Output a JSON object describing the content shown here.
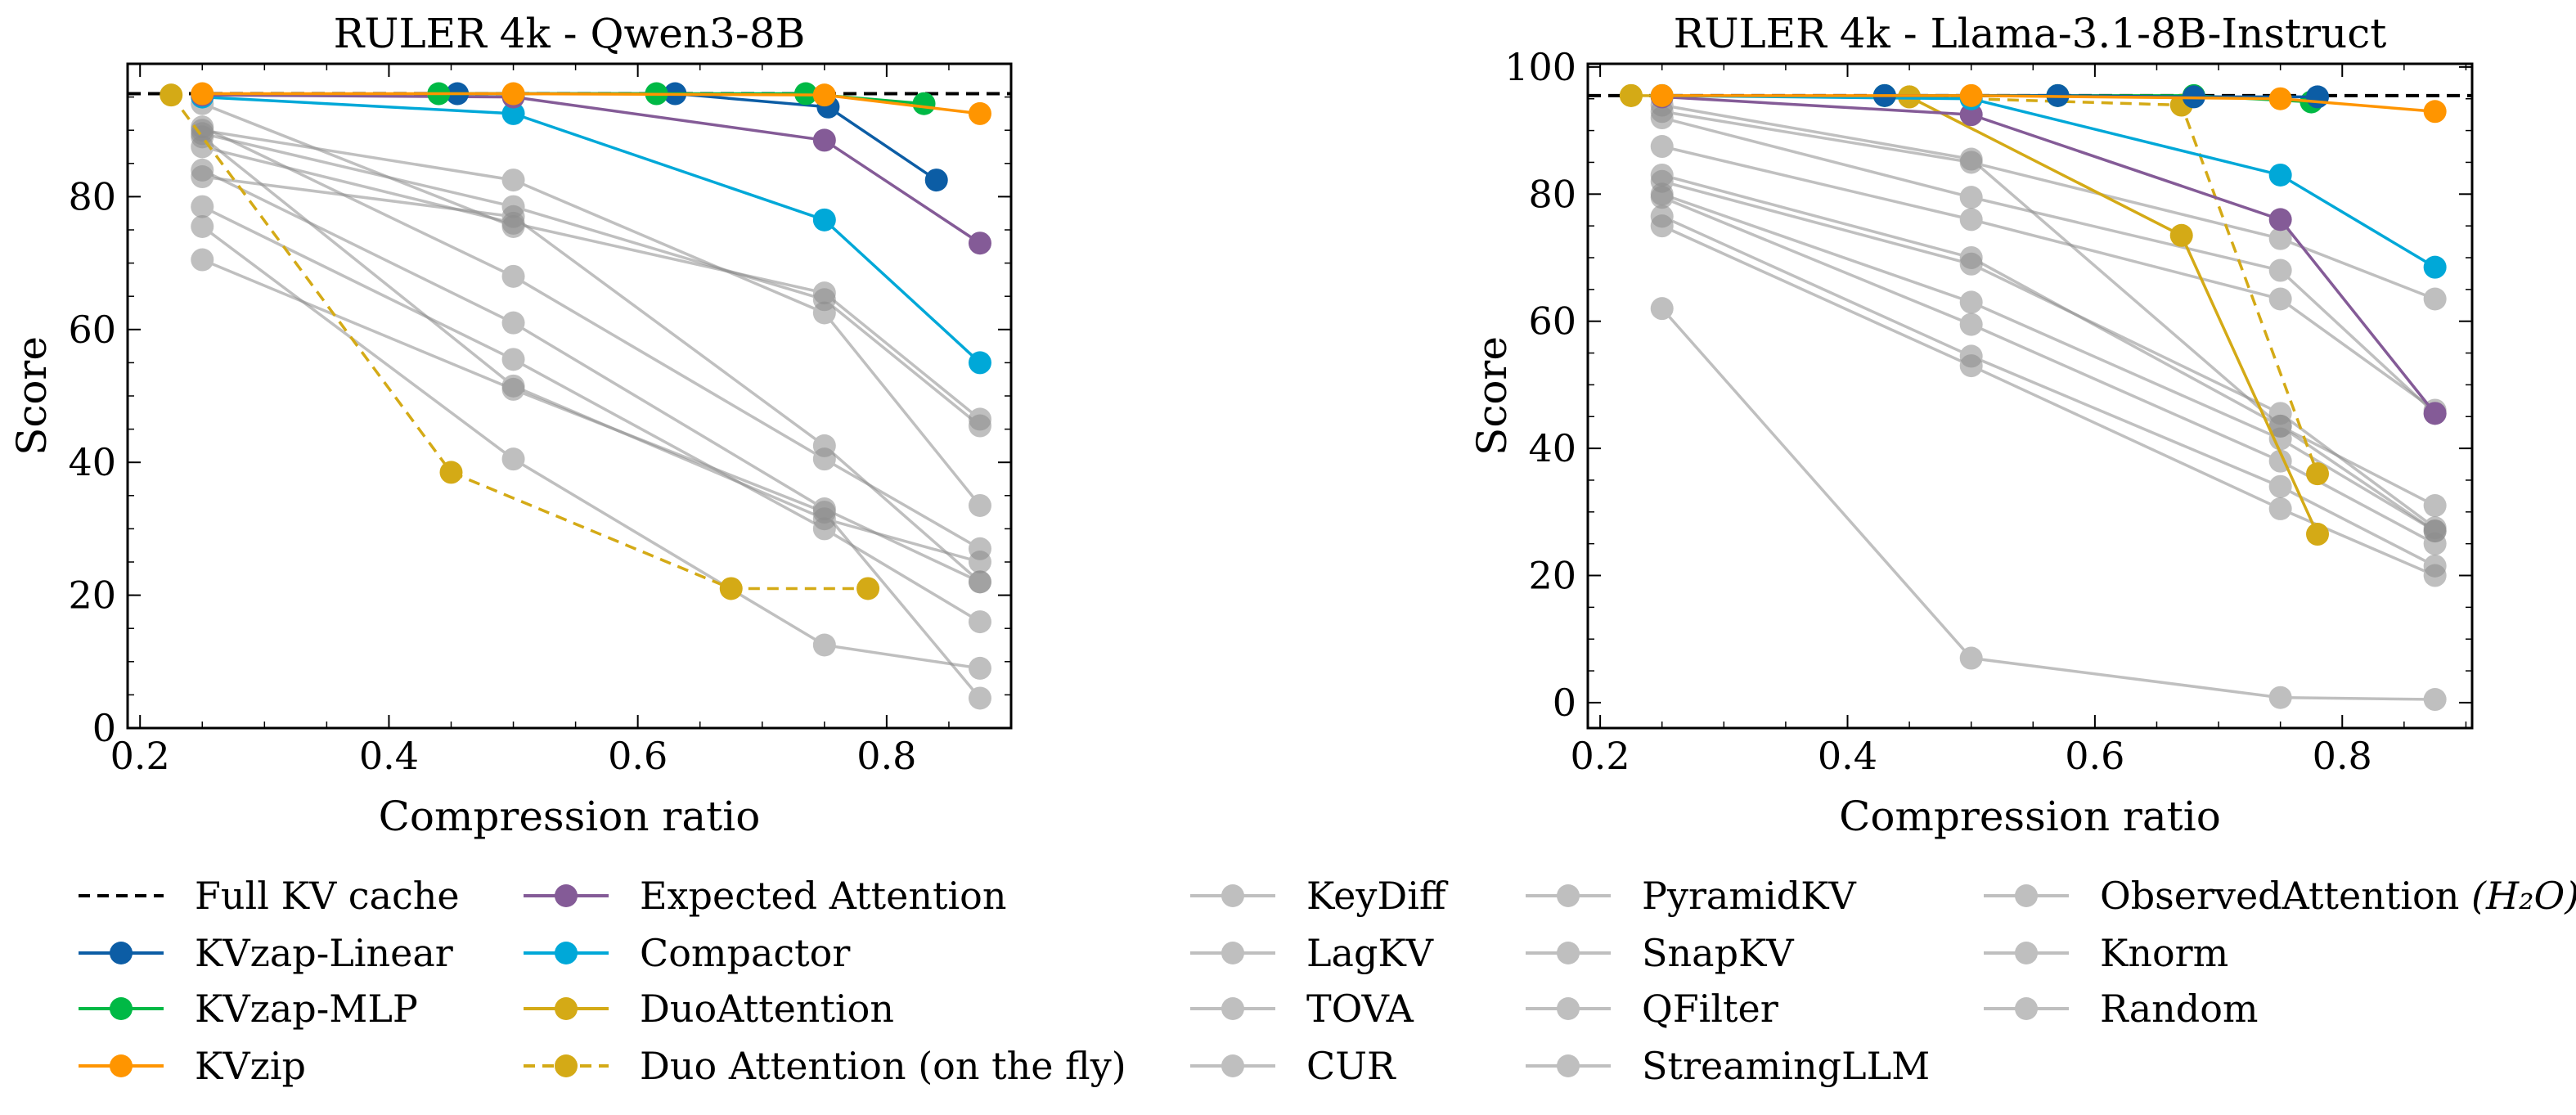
{
  "chart_data": [
    {
      "type": "line",
      "title": "RULER 4k - Qwen3-8B",
      "xlabel": "Compression ratio",
      "ylabel": "Score",
      "xlim": [
        0.19,
        0.9
      ],
      "ylim": [
        0,
        100
      ],
      "xticks": [
        "0.2",
        "0.4",
        "0.6",
        "0.8"
      ],
      "xtick_values": [
        0.2,
        0.4,
        0.6,
        0.8
      ],
      "yticks": [
        "0",
        "20",
        "40",
        "60",
        "80"
      ],
      "ytick_values": [
        0,
        20,
        40,
        60,
        80
      ],
      "full_kv_cache": 95.5,
      "series": [
        {
          "name": "Random",
          "style": "gray",
          "x": [
            0.25,
            0.5,
            0.75,
            0.875
          ],
          "y": [
            70.5,
            51.0,
            32.5,
            4.5
          ]
        },
        {
          "name": "Knorm",
          "style": "gray",
          "x": [
            0.25,
            0.5,
            0.75,
            0.875
          ],
          "y": [
            75.5,
            40.5,
            12.5,
            9.0
          ]
        },
        {
          "name": "StreamingLLM",
          "style": "gray",
          "x": [
            0.25,
            0.5,
            0.75,
            0.875
          ],
          "y": [
            78.5,
            55.5,
            30.0,
            16.0
          ]
        },
        {
          "name": "ObservedAttention",
          "style": "gray",
          "x": [
            0.25,
            0.5,
            0.75,
            0.875
          ],
          "y": [
            83.0,
            77.0,
            42.5,
            22.0
          ]
        },
        {
          "name": "QFilter",
          "style": "gray",
          "x": [
            0.25,
            0.5,
            0.75,
            0.875
          ],
          "y": [
            84.0,
            61.0,
            33.0,
            22.0
          ]
        },
        {
          "name": "SnapKV",
          "style": "gray",
          "x": [
            0.25,
            0.5,
            0.75,
            0.875
          ],
          "y": [
            87.5,
            76.0,
            65.5,
            46.5
          ]
        },
        {
          "name": "PyramidKV",
          "style": "gray",
          "x": [
            0.25,
            0.5,
            0.75,
            0.875
          ],
          "y": [
            89.5,
            78.5,
            64.5,
            45.5
          ]
        },
        {
          "name": "CUR",
          "style": "gray",
          "x": [
            0.25,
            0.5,
            0.75,
            0.875
          ],
          "y": [
            90.5,
            68.0,
            40.5,
            27.0
          ]
        },
        {
          "name": "TOVA",
          "style": "gray",
          "x": [
            0.25,
            0.5,
            0.75,
            0.875
          ],
          "y": [
            90.0,
            82.5,
            62.5,
            33.5
          ]
        },
        {
          "name": "LagKV",
          "style": "gray",
          "x": [
            0.25,
            0.5,
            0.75,
            0.875
          ],
          "y": [
            89.0,
            51.5,
            31.5,
            25.0
          ]
        },
        {
          "name": "KeyDiff",
          "style": "gray",
          "x": [
            0.25,
            0.5
          ],
          "y": [
            94.0,
            75.5
          ]
        },
        {
          "name": "Duo Attention (on the fly)",
          "style": "duo-fly",
          "x": [
            0.225,
            0.45,
            0.675,
            0.785
          ],
          "y": [
            95.3,
            38.5,
            21.0,
            21.0
          ]
        },
        {
          "name": "Compactor",
          "style": "compactor",
          "x": [
            0.25,
            0.5,
            0.75,
            0.875
          ],
          "y": [
            95.0,
            92.5,
            76.5,
            55.0
          ]
        },
        {
          "name": "Expected Attention",
          "style": "expected",
          "x": [
            0.25,
            0.5,
            0.75,
            0.875
          ],
          "y": [
            95.3,
            95.0,
            88.5,
            73.0
          ]
        },
        {
          "name": "KVzap-Linear",
          "style": "kvzap-linear",
          "x": [
            0.455,
            0.63,
            0.753,
            0.84
          ],
          "y": [
            95.5,
            95.5,
            93.5,
            82.5
          ]
        },
        {
          "name": "KVzap-MLP",
          "style": "kvzap-mlp",
          "x": [
            0.44,
            0.615,
            0.735,
            0.83
          ],
          "y": [
            95.5,
            95.5,
            95.5,
            94.0
          ]
        },
        {
          "name": "KVzip",
          "style": "kvzip",
          "x": [
            0.25,
            0.5,
            0.75,
            0.875
          ],
          "y": [
            95.5,
            95.5,
            95.3,
            92.5
          ]
        }
      ]
    },
    {
      "type": "line",
      "title": "RULER 4k - Llama-3.1-8B-Instruct",
      "xlabel": "Compression ratio",
      "ylabel": "Score",
      "xlim": [
        0.19,
        0.905
      ],
      "ylim": [
        -4,
        100.5
      ],
      "xticks": [
        "0.2",
        "0.4",
        "0.6",
        "0.8"
      ],
      "xtick_values": [
        0.2,
        0.4,
        0.6,
        0.8
      ],
      "yticks": [
        "0",
        "20",
        "40",
        "60",
        "80",
        "100"
      ],
      "ytick_values": [
        0,
        20,
        40,
        60,
        80,
        100
      ],
      "full_kv_cache": 95.5,
      "series": [
        {
          "name": "Random",
          "style": "gray",
          "x": [
            0.25,
            0.5,
            0.75,
            0.875
          ],
          "y": [
            62.0,
            7.0,
            0.8,
            0.5
          ]
        },
        {
          "name": "Knorm",
          "style": "gray",
          "x": [
            0.25,
            0.5,
            0.75,
            0.875
          ],
          "y": [
            75.0,
            53.0,
            30.5,
            20.0
          ]
        },
        {
          "name": "StreamingLLM",
          "style": "gray",
          "x": [
            0.25,
            0.5,
            0.75,
            0.875
          ],
          "y": [
            76.5,
            54.5,
            34.0,
            21.5
          ]
        },
        {
          "name": "ObservedAttention",
          "style": "gray",
          "x": [
            0.25,
            0.5,
            0.75,
            0.875
          ],
          "y": [
            79.5,
            59.5,
            38.0,
            25.0
          ]
        },
        {
          "name": "QFilter",
          "style": "gray",
          "x": [
            0.25,
            0.5,
            0.75,
            0.875
          ],
          "y": [
            80.0,
            63.0,
            41.5,
            27.0
          ]
        },
        {
          "name": "SnapKV",
          "style": "gray",
          "x": [
            0.25,
            0.5,
            0.75,
            0.875
          ],
          "y": [
            82.0,
            69.0,
            45.5,
            27.5
          ]
        },
        {
          "name": "PyramidKV",
          "style": "gray",
          "x": [
            0.25,
            0.5,
            0.75,
            0.875
          ],
          "y": [
            83.0,
            70.0,
            43.5,
            31.0
          ]
        },
        {
          "name": "CUR",
          "style": "gray",
          "x": [
            0.25,
            0.5,
            0.75,
            0.875
          ],
          "y": [
            87.5,
            76.0,
            63.5,
            46.0
          ]
        },
        {
          "name": "TOVA",
          "style": "gray",
          "x": [
            0.25,
            0.5,
            0.75,
            0.875
          ],
          "y": [
            92.0,
            79.5,
            68.0,
            45.5
          ]
        },
        {
          "name": "LagKV",
          "style": "gray",
          "x": [
            0.25,
            0.5,
            0.75,
            0.875
          ],
          "y": [
            93.0,
            85.0,
            73.0,
            63.5
          ]
        },
        {
          "name": "KeyDiff",
          "style": "gray",
          "x": [
            0.25,
            0.5,
            0.75,
            0.875
          ],
          "y": [
            94.0,
            85.5,
            43.5,
            27.0
          ]
        },
        {
          "name": "DuoAttention",
          "style": "duo",
          "x": [
            0.225,
            0.45,
            0.67,
            0.78
          ],
          "y": [
            95.5,
            95.3,
            73.5,
            26.5
          ]
        },
        {
          "name": "Duo Attention (on the fly)",
          "style": "duo-fly",
          "x": [
            0.225,
            0.45,
            0.67,
            0.78
          ],
          "y": [
            95.5,
            95.3,
            94.0,
            36.0
          ]
        },
        {
          "name": "Expected Attention",
          "style": "expected",
          "x": [
            0.25,
            0.5,
            0.75,
            0.875
          ],
          "y": [
            95.3,
            92.5,
            76.0,
            45.5
          ]
        },
        {
          "name": "Compactor",
          "style": "compactor",
          "x": [
            0.25,
            0.5,
            0.75,
            0.875
          ],
          "y": [
            95.5,
            95.0,
            83.0,
            68.5
          ]
        },
        {
          "name": "KVzap-MLP",
          "style": "kvzap-mlp",
          "x": [
            0.43,
            0.57,
            0.68,
            0.775
          ],
          "y": [
            95.5,
            95.5,
            95.5,
            94.5
          ]
        },
        {
          "name": "KVzap-Linear",
          "style": "kvzap-linear",
          "x": [
            0.43,
            0.57,
            0.68,
            0.78
          ],
          "y": [
            95.5,
            95.5,
            95.3,
            95.3
          ]
        },
        {
          "name": "KVzip",
          "style": "kvzip",
          "x": [
            0.25,
            0.5,
            0.75,
            0.875
          ],
          "y": [
            95.5,
            95.5,
            95.0,
            93.0
          ]
        }
      ]
    }
  ],
  "legend": {
    "columns": [
      [
        "Full KV cache",
        "KVzap-Linear",
        "KVzap-MLP",
        "KVzip"
      ],
      [
        "Expected Attention",
        "Compactor",
        "DuoAttention",
        "Duo Attention (on the fly)"
      ],
      [
        "KeyDiff",
        "LagKV",
        "TOVA",
        "CUR"
      ],
      [
        "PyramidKV",
        "SnapKV",
        "QFilter",
        "StreamingLLM"
      ],
      [
        "ObservedAttention",
        "Knorm",
        "Random"
      ]
    ],
    "subscript_label": "(H₂O)"
  },
  "styles": {
    "full-kv": {
      "color": "#000000",
      "dashed": true,
      "marker": false,
      "opacity": 1
    },
    "kvzap-linear": {
      "color": "#0C5DA5",
      "dashed": false,
      "marker": true,
      "opacity": 1
    },
    "kvzap-mlp": {
      "color": "#00B945",
      "dashed": false,
      "marker": true,
      "opacity": 1
    },
    "kvzip": {
      "color": "#FF9500",
      "dashed": false,
      "marker": true,
      "opacity": 1
    },
    "expected": {
      "color": "#845B97",
      "dashed": false,
      "marker": true,
      "opacity": 1
    },
    "compactor": {
      "color": "#00A8D8",
      "dashed": false,
      "marker": true,
      "opacity": 1
    },
    "duo": {
      "color": "#D4AA16",
      "dashed": false,
      "marker": true,
      "opacity": 1
    },
    "duo-fly": {
      "color": "#D4AA16",
      "dashed": true,
      "marker": true,
      "opacity": 1
    },
    "gray": {
      "color": "#8C8C8C",
      "dashed": false,
      "marker": true,
      "opacity": 0.55
    }
  }
}
